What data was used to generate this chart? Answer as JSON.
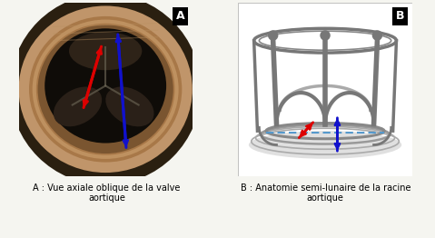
{
  "figsize": [
    4.79,
    2.62
  ],
  "dpi": 100,
  "background_color": "#f5f5f0",
  "label_A": "A",
  "label_B": "B",
  "caption_A": "A : Vue axiale oblique de la valve\naortique",
  "caption_B": "B : Anatomie semi-lunaire de la racine\naortique",
  "caption_fontsize": 7.0,
  "panel_label_fontsize": 9,
  "label_box_color": "#000000",
  "label_text_color": "#ffffff",
  "arrow_red": "#dd0000",
  "arrow_blue": "#1111cc",
  "gray_stroke": "#888888",
  "gray_thick": "#777777",
  "dashed_blue": "#5599cc",
  "panel_B_bg": "#ffffff",
  "tissue_outer": "#c8a87a",
  "tissue_mid": "#9a7a50",
  "valve_dark": "#1a1510",
  "leaflet_color": "#3a3028"
}
